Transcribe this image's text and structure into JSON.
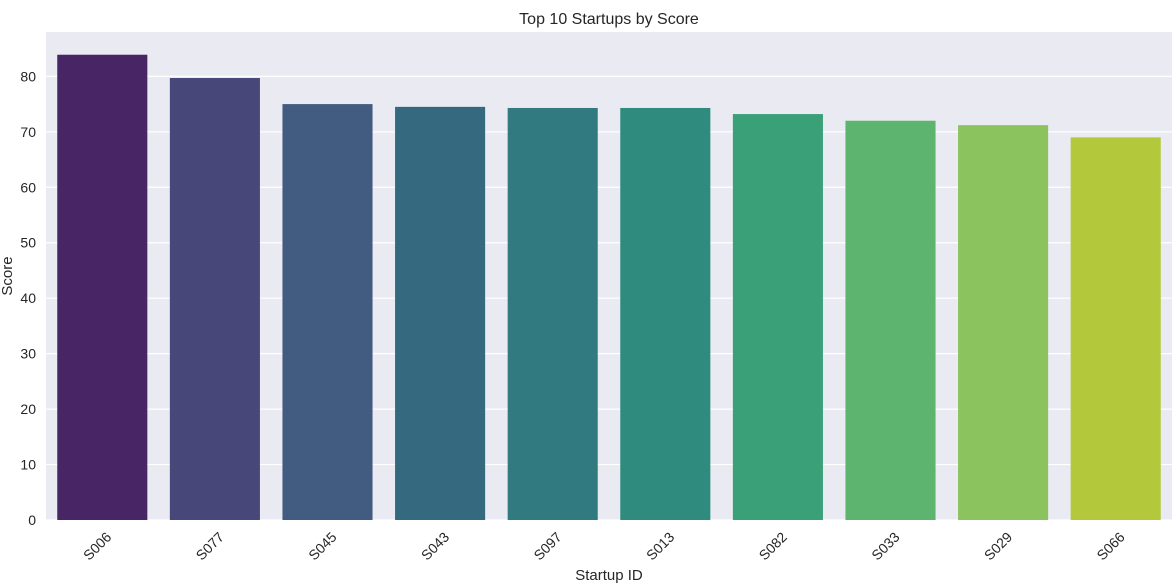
{
  "chart_data": {
    "type": "bar",
    "title": "Top 10 Startups by Score",
    "xlabel": "Startup ID",
    "ylabel": "Score",
    "categories": [
      "S006",
      "S077",
      "S045",
      "S043",
      "S097",
      "S013",
      "S082",
      "S033",
      "S029",
      "S066"
    ],
    "values": [
      83.9,
      79.7,
      75.0,
      74.5,
      74.3,
      74.3,
      73.2,
      72.0,
      71.2,
      69.0
    ],
    "colors": [
      "#482666",
      "#48477a",
      "#425b80",
      "#356980",
      "#317a80",
      "#2e8b7e",
      "#3aa078",
      "#5db46f",
      "#8bc35e",
      "#b3c83b"
    ],
    "yticks": [
      0,
      10,
      20,
      30,
      40,
      50,
      60,
      70,
      80
    ],
    "ylim": [
      0,
      88
    ],
    "grid": true,
    "background": "#eaeaf2"
  }
}
